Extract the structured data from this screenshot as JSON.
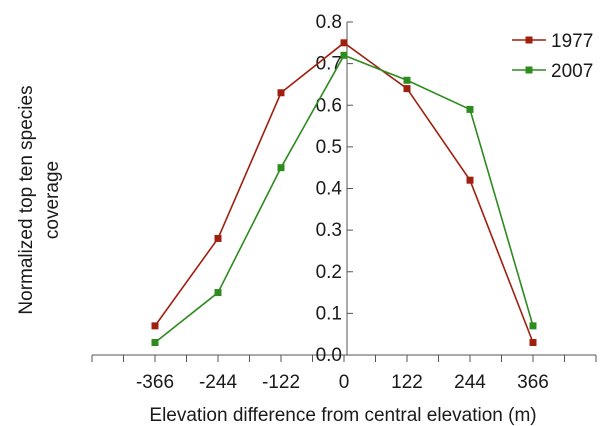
{
  "chart_data": {
    "type": "line",
    "x": [
      -366,
      -244,
      -122,
      0,
      122,
      244,
      366
    ],
    "x_tick_labels": [
      "-366",
      "-244",
      "-122",
      "0",
      "122",
      "244",
      "366"
    ],
    "y_tick_labels": [
      "0.0",
      "0.1",
      "0.2",
      "0.3",
      "0.4",
      "0.5",
      "0.6",
      "0.7",
      "0.8"
    ],
    "series": [
      {
        "name": "1977",
        "color": "#a02010",
        "values": [
          0.07,
          0.28,
          0.63,
          0.75,
          0.64,
          0.42,
          0.03
        ]
      },
      {
        "name": "2007",
        "color": "#2e8b1e",
        "values": [
          0.03,
          0.15,
          0.45,
          0.72,
          0.66,
          0.59,
          0.07
        ]
      }
    ],
    "xlabel": "Elevation difference from central elevation (m)",
    "ylabel_lines": [
      "Normalized top ten species",
      "coverage"
    ],
    "xlim": [
      -488,
      488
    ],
    "ylim": [
      0,
      0.8
    ],
    "grid": false,
    "legend_position": "top-right",
    "marker": "square"
  }
}
